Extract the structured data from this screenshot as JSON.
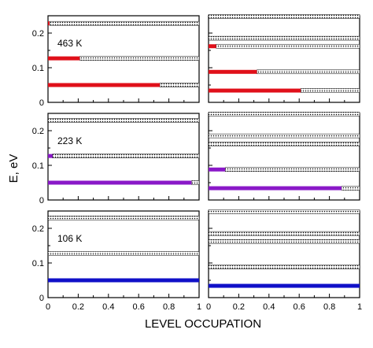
{
  "chart_data": {
    "type": "bar",
    "xlabel": "LEVEL OCCUPATION",
    "ylabel": "E, eV",
    "xlim": [
      0,
      1
    ],
    "ylim": [
      0,
      0.25
    ],
    "xticks": [
      "0",
      "0.2",
      "0.4",
      "0.6",
      "0.8",
      "1"
    ],
    "xticks_right": [
      "0",
      "0.2",
      "0.4",
      "0.6",
      "0.8",
      "1"
    ],
    "yticks": [
      "0",
      "0.1",
      "0.2"
    ],
    "yticks_values": [
      0,
      0.1,
      0.2
    ],
    "xticks_values": [
      0,
      0.2,
      0.4,
      0.6,
      0.8,
      1
    ],
    "grid": false,
    "bar_style": "horizontal filled segment (occupation) followed by dotted remainder up to 1",
    "panels": [
      {
        "row": 0,
        "col": 0,
        "temperature": "463 K",
        "color": "#e0101a",
        "levels": [
          {
            "energy": 0.228,
            "occupation": 0.01
          },
          {
            "energy": 0.127,
            "occupation": 0.21
          },
          {
            "energy": 0.05,
            "occupation": 0.74
          }
        ]
      },
      {
        "row": 0,
        "col": 1,
        "temperature": "",
        "color": "#e0101a",
        "levels": [
          {
            "energy": 0.248,
            "occupation": 0.0
          },
          {
            "energy": 0.185,
            "occupation": 0.0
          },
          {
            "energy": 0.162,
            "occupation": 0.05
          },
          {
            "energy": 0.088,
            "occupation": 0.32
          },
          {
            "energy": 0.034,
            "occupation": 0.61
          }
        ]
      },
      {
        "row": 1,
        "col": 0,
        "temperature": "223 K",
        "color": "#8a18c8",
        "levels": [
          {
            "energy": 0.23,
            "occupation": 0.0
          },
          {
            "energy": 0.127,
            "occupation": 0.03
          },
          {
            "energy": 0.05,
            "occupation": 0.95
          }
        ]
      },
      {
        "row": 1,
        "col": 1,
        "temperature": "",
        "color": "#8a18c8",
        "levels": [
          {
            "energy": 0.248,
            "occupation": 0.0
          },
          {
            "energy": 0.185,
            "occupation": 0.0
          },
          {
            "energy": 0.162,
            "occupation": 0.0
          },
          {
            "energy": 0.088,
            "occupation": 0.11
          },
          {
            "energy": 0.034,
            "occupation": 0.88
          }
        ]
      },
      {
        "row": 2,
        "col": 0,
        "temperature": "106 K",
        "color": "#1010c8",
        "levels": [
          {
            "energy": 0.23,
            "occupation": 0.0
          },
          {
            "energy": 0.127,
            "occupation": 0.0
          },
          {
            "energy": 0.05,
            "occupation": 1.0
          }
        ]
      },
      {
        "row": 2,
        "col": 1,
        "temperature": "",
        "color": "#1010c8",
        "levels": [
          {
            "energy": 0.248,
            "occupation": 0.0
          },
          {
            "energy": 0.185,
            "occupation": 0.0
          },
          {
            "energy": 0.162,
            "occupation": 0.0
          },
          {
            "energy": 0.088,
            "occupation": 0.0
          },
          {
            "energy": 0.034,
            "occupation": 1.0
          }
        ]
      }
    ]
  }
}
